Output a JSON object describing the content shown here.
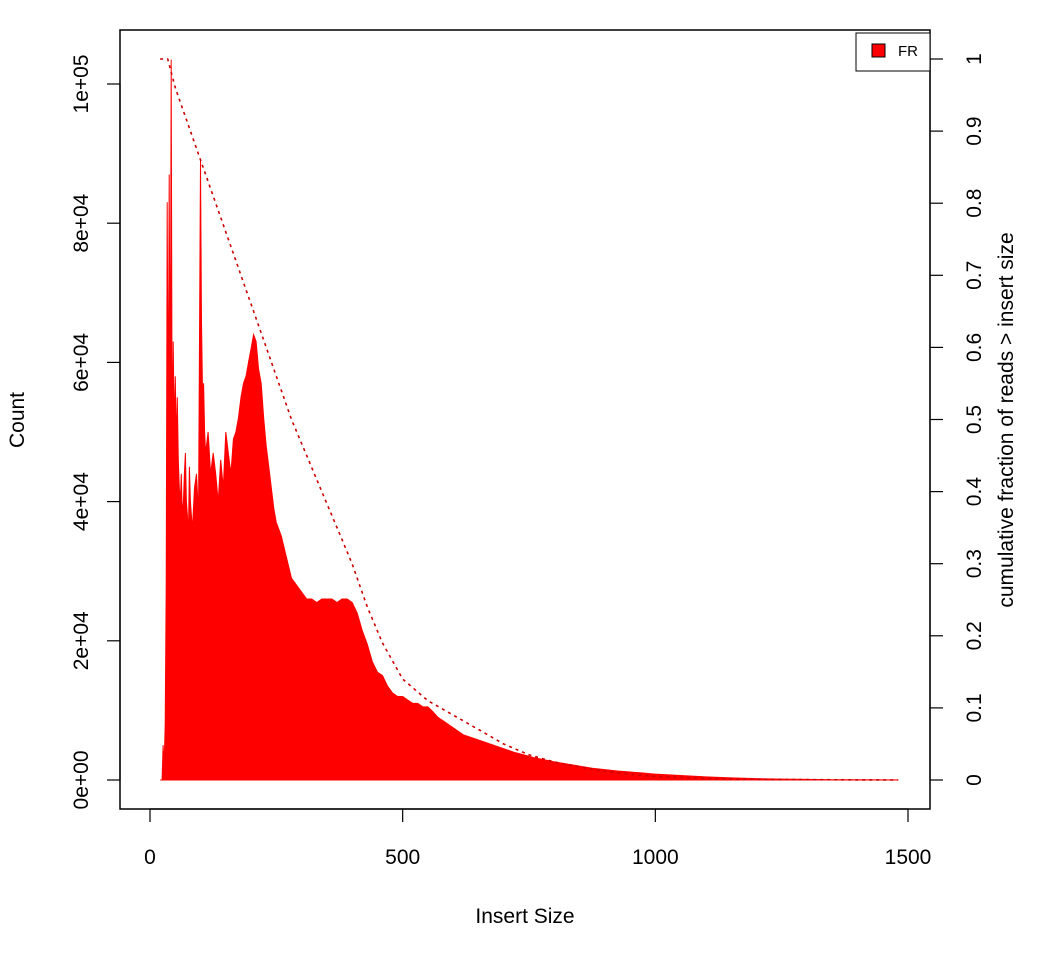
{
  "chart_data": {
    "type": "area",
    "title": "",
    "xlabel": "Insert Size",
    "ylabel": "Count",
    "y2label": "cumulative fraction of reads > insert size",
    "xlim": [
      0,
      1500
    ],
    "ylim": [
      0,
      105000
    ],
    "y2lim": [
      0,
      1
    ],
    "x_ticks": [
      0,
      500,
      1000,
      1500
    ],
    "x_tick_labels": [
      "0",
      "500",
      "1000",
      "1500"
    ],
    "y_ticks": [
      0,
      20000,
      40000,
      60000,
      80000,
      100000
    ],
    "y_tick_labels": [
      "0e+00",
      "2e+04",
      "4e+04",
      "6e+04",
      "8e+04",
      "1e+05"
    ],
    "y2_ticks": [
      0,
      0.1,
      0.2,
      0.3,
      0.4,
      0.5,
      0.6,
      0.7,
      0.8,
      0.9,
      1
    ],
    "y2_tick_labels": [
      "0",
      "0.1",
      "0.2",
      "0.3",
      "0.4",
      "0.5",
      "0.6",
      "0.7",
      "0.8",
      "0.9",
      "1"
    ],
    "grid": false,
    "legend": {
      "position": "top-right",
      "entries": [
        {
          "label": "FR",
          "color": "#ff0000"
        }
      ]
    },
    "series": [
      {
        "name": "FR",
        "kind": "histogram",
        "color": "#ff0000",
        "x": [
          20,
          24,
          26,
          28,
          30,
          32,
          34,
          36,
          38,
          40,
          42,
          44,
          46,
          48,
          50,
          52,
          54,
          56,
          58,
          60,
          62,
          64,
          66,
          68,
          70,
          72,
          74,
          76,
          78,
          80,
          84,
          88,
          92,
          96,
          100,
          102,
          104,
          106,
          108,
          110,
          115,
          120,
          125,
          130,
          135,
          140,
          145,
          150,
          155,
          160,
          165,
          170,
          175,
          180,
          185,
          190,
          195,
          200,
          205,
          210,
          215,
          220,
          225,
          230,
          235,
          240,
          245,
          250,
          255,
          260,
          270,
          280,
          290,
          300,
          310,
          320,
          330,
          340,
          350,
          360,
          370,
          380,
          390,
          400,
          410,
          420,
          430,
          440,
          450,
          460,
          470,
          480,
          490,
          500,
          510,
          520,
          530,
          540,
          550,
          560,
          570,
          580,
          590,
          600,
          620,
          640,
          660,
          680,
          700,
          720,
          740,
          760,
          780,
          800,
          825,
          850,
          875,
          900,
          925,
          950,
          975,
          1000,
          1050,
          1100,
          1150,
          1200,
          1250,
          1300,
          1350,
          1400,
          1450,
          1480
        ],
        "values": [
          0,
          0,
          5000,
          2000,
          8000,
          28000,
          83000,
          48000,
          87000,
          50000,
          103500,
          45000,
          63000,
          50000,
          58000,
          48000,
          55000,
          46000,
          42000,
          40000,
          44000,
          38000,
          40000,
          44000,
          47000,
          40000,
          38000,
          35000,
          45000,
          40000,
          36000,
          42000,
          44000,
          38000,
          89000,
          66000,
          55000,
          57000,
          50000,
          47000,
          50000,
          44000,
          47000,
          44000,
          40000,
          46000,
          42000,
          50000,
          47000,
          44000,
          49000,
          50000,
          52000,
          55000,
          57000,
          58000,
          60000,
          62000,
          64000,
          63000,
          59000,
          57000,
          52000,
          48000,
          45000,
          42000,
          39000,
          37000,
          36000,
          35000,
          32000,
          29000,
          28000,
          27000,
          26000,
          26000,
          25500,
          26000,
          26000,
          26000,
          25500,
          26000,
          26000,
          25500,
          24000,
          21500,
          19500,
          17000,
          15500,
          15000,
          13500,
          12500,
          12000,
          12000,
          11500,
          11000,
          11000,
          10500,
          10500,
          9800,
          9000,
          8500,
          8000,
          7500,
          6500,
          6000,
          5500,
          5000,
          4500,
          4000,
          3600,
          3200,
          2900,
          2600,
          2300,
          2000,
          1700,
          1500,
          1300,
          1150,
          1000,
          850,
          650,
          450,
          300,
          200,
          130,
          80,
          50,
          30,
          15,
          10
        ]
      },
      {
        "name": "",
        "kind": "cumulative",
        "axis": "right",
        "color": "#cc0000",
        "style": "dotted",
        "x": [
          20,
          35,
          50,
          75,
          100,
          130,
          160,
          190,
          220,
          250,
          280,
          310,
          340,
          370,
          400,
          430,
          460,
          500,
          550,
          600,
          650,
          700,
          750,
          800,
          850,
          900,
          950,
          1000,
          1100,
          1200,
          1300,
          1400,
          1480
        ],
        "values": [
          1.0,
          1.0,
          0.96,
          0.91,
          0.86,
          0.8,
          0.74,
          0.68,
          0.62,
          0.56,
          0.5,
          0.45,
          0.4,
          0.35,
          0.3,
          0.24,
          0.19,
          0.14,
          0.11,
          0.09,
          0.07,
          0.05,
          0.035,
          0.025,
          0.018,
          0.012,
          0.008,
          0.005,
          0.002,
          0.001,
          0.0005,
          0.0002,
          0
        ]
      }
    ]
  }
}
